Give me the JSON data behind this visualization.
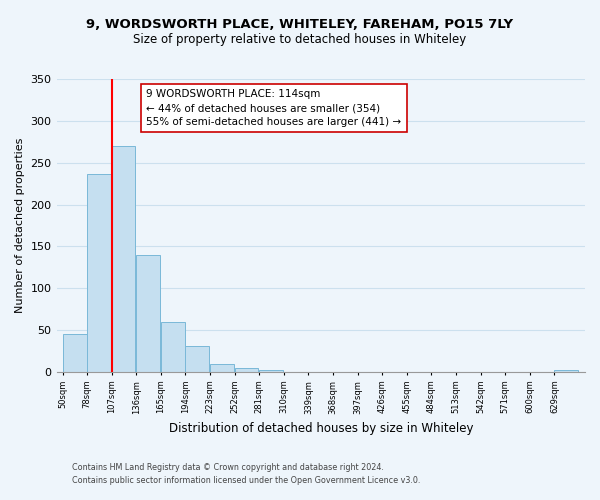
{
  "title": "9, WORDSWORTH PLACE, WHITELEY, FAREHAM, PO15 7LY",
  "subtitle": "Size of property relative to detached houses in Whiteley",
  "xlabel": "Distribution of detached houses by size in Whiteley",
  "ylabel": "Number of detached properties",
  "bar_color": "#c5dff0",
  "bar_edge_color": "#7ab8d8",
  "bin_labels": [
    "50sqm",
    "78sqm",
    "107sqm",
    "136sqm",
    "165sqm",
    "194sqm",
    "223sqm",
    "252sqm",
    "281sqm",
    "310sqm",
    "339sqm",
    "368sqm",
    "397sqm",
    "426sqm",
    "455sqm",
    "484sqm",
    "513sqm",
    "542sqm",
    "571sqm",
    "600sqm",
    "629sqm"
  ],
  "bin_edges": [
    50,
    78,
    107,
    136,
    165,
    194,
    223,
    252,
    281,
    310,
    339,
    368,
    397,
    426,
    455,
    484,
    513,
    542,
    571,
    600,
    629
  ],
  "bar_heights": [
    46,
    236,
    270,
    140,
    60,
    31,
    10,
    5,
    2,
    0,
    0,
    0,
    0,
    0,
    0,
    0,
    0,
    0,
    0,
    0,
    2
  ],
  "red_line_x": 107,
  "annotation_line1": "9 WORDSWORTH PLACE: 114sqm",
  "annotation_line2": "← 44% of detached houses are smaller (354)",
  "annotation_line3": "55% of semi-detached houses are larger (441) →",
  "ylim": [
    0,
    350
  ],
  "yticks": [
    0,
    50,
    100,
    150,
    200,
    250,
    300,
    350
  ],
  "footnote1": "Contains HM Land Registry data © Crown copyright and database right 2024.",
  "footnote2": "Contains public sector information licensed under the Open Government Licence v3.0.",
  "grid_color": "#cce0ee",
  "background_color": "#eef5fb"
}
